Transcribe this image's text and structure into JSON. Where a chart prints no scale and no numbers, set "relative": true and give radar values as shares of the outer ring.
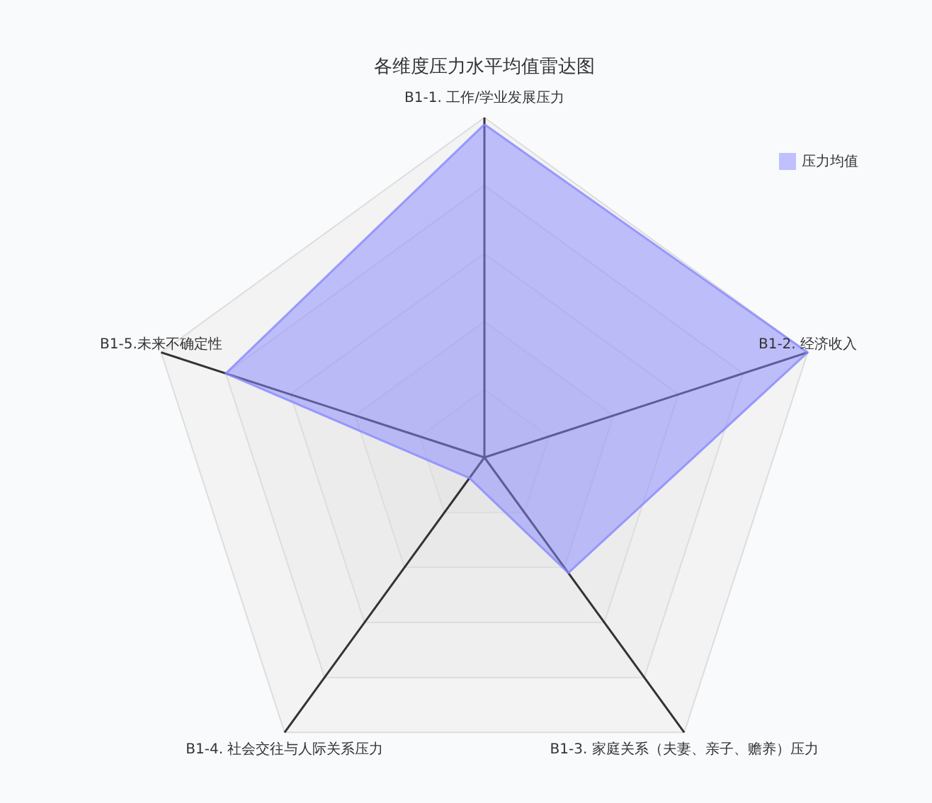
{
  "chart_data": {
    "type": "radar",
    "title": "各维度压力水平均值雷达图",
    "relative": true,
    "legend": "top right",
    "categories": [
      "B1-1. 工作/学业发展压力",
      "B1-2. 经济收入",
      "B1-3. 家庭关系（夫妻、亲子、赡养）压力",
      "B1-4. 社会交往与人际关系压力",
      "B1-5.未来不确定性"
    ],
    "series": [
      {
        "name": "压力均值",
        "color": "#8888ff",
        "values": [
          0.98,
          1.0,
          0.42,
          0.075,
          0.8
        ]
      }
    ]
  }
}
